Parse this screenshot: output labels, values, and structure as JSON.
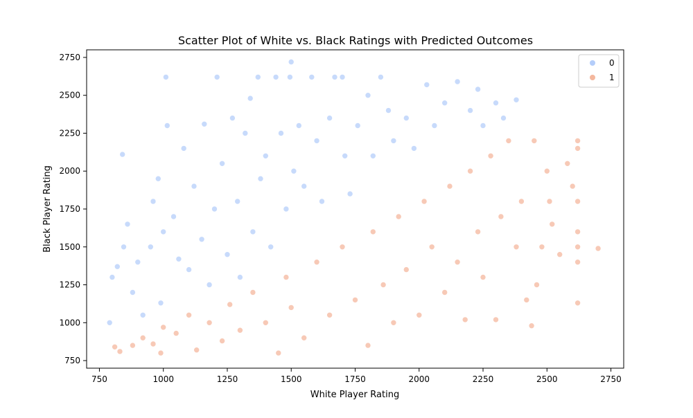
{
  "chart_data": {
    "type": "scatter",
    "title": "Scatter Plot of White vs. Black Ratings with Predicted Outcomes",
    "xlabel": "White Player Rating",
    "ylabel": "Black Player Rating",
    "xlim": [
      700,
      2800
    ],
    "ylim": [
      700,
      2800
    ],
    "xticks": [
      750,
      1000,
      1250,
      1500,
      1750,
      2000,
      2250,
      2500,
      2750
    ],
    "yticks": [
      750,
      1000,
      1250,
      1500,
      1750,
      2000,
      2250,
      2500,
      2750
    ],
    "xtick_labels": [
      "750",
      "1000",
      "1250",
      "1500",
      "1750",
      "2000",
      "2250",
      "2500",
      "2750"
    ],
    "ytick_labels": [
      "750",
      "1000",
      "1250",
      "1500",
      "1750",
      "2000",
      "2250",
      "2500",
      "2750"
    ],
    "grid": false,
    "legend_position": "top-right",
    "series": [
      {
        "name": "0",
        "color": "#b4cdfa",
        "points": [
          [
            790,
            1000
          ],
          [
            800,
            1300
          ],
          [
            820,
            1370
          ],
          [
            840,
            2110
          ],
          [
            845,
            1500
          ],
          [
            860,
            1650
          ],
          [
            880,
            1200
          ],
          [
            900,
            1400
          ],
          [
            920,
            1050
          ],
          [
            950,
            1500
          ],
          [
            960,
            1800
          ],
          [
            980,
            1950
          ],
          [
            990,
            1130
          ],
          [
            1000,
            1600
          ],
          [
            1010,
            2620
          ],
          [
            1015,
            2300
          ],
          [
            1040,
            1700
          ],
          [
            1060,
            1420
          ],
          [
            1080,
            2150
          ],
          [
            1100,
            1350
          ],
          [
            1120,
            1900
          ],
          [
            1150,
            1550
          ],
          [
            1160,
            2310
          ],
          [
            1180,
            1250
          ],
          [
            1200,
            1750
          ],
          [
            1210,
            2620
          ],
          [
            1230,
            2050
          ],
          [
            1250,
            1450
          ],
          [
            1270,
            2350
          ],
          [
            1290,
            1800
          ],
          [
            1300,
            1300
          ],
          [
            1320,
            2250
          ],
          [
            1340,
            2480
          ],
          [
            1350,
            1600
          ],
          [
            1370,
            2620
          ],
          [
            1380,
            1950
          ],
          [
            1400,
            2100
          ],
          [
            1420,
            1500
          ],
          [
            1440,
            2620
          ],
          [
            1460,
            2250
          ],
          [
            1480,
            1750
          ],
          [
            1495,
            2620
          ],
          [
            1500,
            2720
          ],
          [
            1510,
            2000
          ],
          [
            1530,
            2300
          ],
          [
            1550,
            1900
          ],
          [
            1580,
            2620
          ],
          [
            1600,
            2200
          ],
          [
            1620,
            1800
          ],
          [
            1650,
            2350
          ],
          [
            1670,
            2620
          ],
          [
            1700,
            2620
          ],
          [
            1710,
            2100
          ],
          [
            1730,
            1850
          ],
          [
            1760,
            2300
          ],
          [
            1800,
            2500
          ],
          [
            1820,
            2100
          ],
          [
            1850,
            2620
          ],
          [
            1880,
            2400
          ],
          [
            1900,
            2200
          ],
          [
            1950,
            2350
          ],
          [
            1980,
            2150
          ],
          [
            2030,
            2570
          ],
          [
            2060,
            2300
          ],
          [
            2100,
            2450
          ],
          [
            2150,
            2590
          ],
          [
            2200,
            2400
          ],
          [
            2230,
            2540
          ],
          [
            2250,
            2300
          ],
          [
            2300,
            2450
          ],
          [
            2330,
            2350
          ],
          [
            2380,
            2470
          ]
        ]
      },
      {
        "name": "1",
        "color": "#f4b79d",
        "points": [
          [
            810,
            840
          ],
          [
            830,
            810
          ],
          [
            880,
            850
          ],
          [
            920,
            900
          ],
          [
            960,
            860
          ],
          [
            990,
            800
          ],
          [
            1000,
            970
          ],
          [
            1050,
            930
          ],
          [
            1100,
            1050
          ],
          [
            1130,
            820
          ],
          [
            1180,
            1000
          ],
          [
            1230,
            880
          ],
          [
            1260,
            1120
          ],
          [
            1300,
            950
          ],
          [
            1350,
            1200
          ],
          [
            1400,
            1000
          ],
          [
            1450,
            800
          ],
          [
            1480,
            1300
          ],
          [
            1500,
            1100
          ],
          [
            1550,
            900
          ],
          [
            1600,
            1400
          ],
          [
            1650,
            1050
          ],
          [
            1700,
            1500
          ],
          [
            1750,
            1150
          ],
          [
            1800,
            850
          ],
          [
            1820,
            1600
          ],
          [
            1860,
            1250
          ],
          [
            1900,
            1000
          ],
          [
            1920,
            1700
          ],
          [
            1950,
            1350
          ],
          [
            2000,
            1050
          ],
          [
            2020,
            1800
          ],
          [
            2050,
            1500
          ],
          [
            2100,
            1200
          ],
          [
            2120,
            1900
          ],
          [
            2150,
            1400
          ],
          [
            2180,
            1020
          ],
          [
            2200,
            2000
          ],
          [
            2230,
            1600
          ],
          [
            2250,
            1300
          ],
          [
            2280,
            2100
          ],
          [
            2300,
            1020
          ],
          [
            2320,
            1700
          ],
          [
            2350,
            2200
          ],
          [
            2380,
            1500
          ],
          [
            2400,
            1800
          ],
          [
            2420,
            1150
          ],
          [
            2440,
            980
          ],
          [
            2450,
            2200
          ],
          [
            2460,
            1250
          ],
          [
            2480,
            1500
          ],
          [
            2500,
            2000
          ],
          [
            2510,
            1800
          ],
          [
            2520,
            1650
          ],
          [
            2550,
            1450
          ],
          [
            2580,
            2050
          ],
          [
            2600,
            1900
          ],
          [
            2620,
            2200
          ],
          [
            2620,
            2150
          ],
          [
            2620,
            1800
          ],
          [
            2620,
            1600
          ],
          [
            2620,
            1500
          ],
          [
            2620,
            1400
          ],
          [
            2620,
            1130
          ],
          [
            2700,
            1490
          ]
        ]
      }
    ]
  }
}
